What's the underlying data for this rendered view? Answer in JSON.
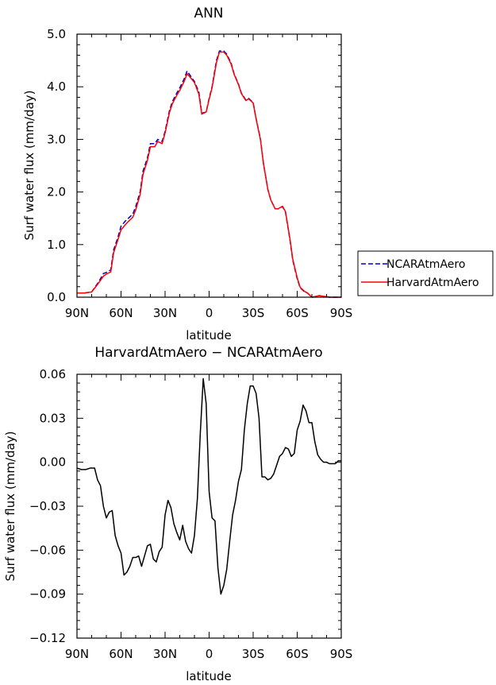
{
  "chart_data": [
    {
      "type": "line",
      "title": "ANN",
      "xlabel": "latitude",
      "ylabel": "Surf water flux (mm/day)",
      "xlim": [
        90,
        -90
      ],
      "ylim": [
        0,
        5
      ],
      "xticks": [
        90,
        60,
        30,
        0,
        -30,
        -60,
        -90
      ],
      "xtick_labels": [
        "90N",
        "60N",
        "30N",
        "0",
        "30S",
        "60S",
        "90S"
      ],
      "yticks": [
        0,
        1,
        2,
        3,
        4,
        5
      ],
      "ytick_labels": [
        "0.0",
        "1.0",
        "2.0",
        "3.0",
        "4.0",
        "5.0"
      ],
      "legend": "right",
      "series": [
        {
          "name": "NCARAtmAero",
          "color": "#0000cc",
          "style": "dashed",
          "x": [
            90,
            85,
            80,
            78,
            75,
            72,
            70,
            67,
            65,
            62,
            60,
            57,
            55,
            52,
            50,
            47,
            45,
            42,
            40,
            37,
            35,
            32,
            30,
            27,
            25,
            22,
            20,
            17,
            15,
            12,
            10,
            7,
            5,
            2,
            0,
            -2,
            -5,
            -7,
            -10,
            -12,
            -15,
            -17,
            -20,
            -22,
            -25,
            -27,
            -30,
            -32,
            -35,
            -37,
            -40,
            -42,
            -45,
            -47,
            -50,
            -52,
            -55,
            -57,
            -60,
            -62,
            -65,
            -67,
            -70,
            -72,
            -75,
            -77,
            -80,
            -82,
            -85,
            -87,
            -90
          ],
          "y": [
            0.08,
            0.08,
            0.1,
            0.18,
            0.3,
            0.45,
            0.47,
            0.52,
            0.9,
            1.15,
            1.35,
            1.45,
            1.5,
            1.58,
            1.72,
            2.0,
            2.4,
            2.65,
            2.92,
            2.92,
            3.0,
            2.96,
            3.15,
            3.55,
            3.72,
            3.88,
            3.98,
            4.15,
            4.3,
            4.18,
            4.1,
            3.9,
            3.5,
            3.52,
            3.78,
            4.0,
            4.5,
            4.68,
            4.68,
            4.62,
            4.45,
            4.25,
            4.05,
            3.88,
            3.75,
            3.78,
            3.7,
            3.4,
            3.0,
            2.55,
            2.05,
            1.85,
            1.68,
            1.68,
            1.72,
            1.62,
            1.1,
            0.7,
            0.35,
            0.18,
            0.1,
            0.08,
            0.0,
            0.01,
            0.03,
            0.02,
            0.01,
            0.0,
            0.0,
            0.0,
            0.0
          ]
        },
        {
          "name": "HarvardAtmAero",
          "color": "#ff0000",
          "style": "solid",
          "x": [
            90,
            85,
            80,
            78,
            75,
            72,
            70,
            67,
            65,
            62,
            60,
            57,
            55,
            52,
            50,
            47,
            45,
            42,
            40,
            37,
            35,
            32,
            30,
            27,
            25,
            22,
            20,
            17,
            15,
            12,
            10,
            7,
            5,
            2,
            0,
            -2,
            -5,
            -7,
            -10,
            -12,
            -15,
            -17,
            -20,
            -22,
            -25,
            -27,
            -30,
            -32,
            -35,
            -37,
            -40,
            -42,
            -45,
            -47,
            -50,
            -52,
            -55,
            -57,
            -60,
            -62,
            -65,
            -67,
            -70,
            -72,
            -75,
            -77,
            -80,
            -82,
            -85,
            -87,
            -90
          ],
          "y": [
            0.08,
            0.08,
            0.1,
            0.17,
            0.28,
            0.4,
            0.44,
            0.48,
            0.85,
            1.1,
            1.28,
            1.38,
            1.44,
            1.52,
            1.66,
            1.95,
            2.34,
            2.6,
            2.86,
            2.86,
            2.96,
            2.92,
            3.12,
            3.51,
            3.68,
            3.84,
            3.93,
            4.1,
            4.25,
            4.15,
            4.08,
            3.86,
            3.48,
            3.52,
            3.76,
            3.98,
            4.46,
            4.66,
            4.66,
            4.6,
            4.43,
            4.24,
            4.04,
            3.87,
            3.74,
            3.77,
            3.69,
            3.39,
            2.99,
            2.54,
            2.05,
            1.85,
            1.68,
            1.68,
            1.73,
            1.63,
            1.12,
            0.72,
            0.37,
            0.19,
            0.11,
            0.08,
            0.0,
            0.01,
            0.03,
            0.02,
            0.01,
            0.0,
            0.0,
            0.0,
            0.0
          ]
        }
      ]
    },
    {
      "type": "line",
      "title": "HarvardAtmAero − NCARAtmAero",
      "xlabel": "latitude",
      "ylabel": "Surf water flux (mm/day)",
      "xlim": [
        90,
        -90
      ],
      "ylim": [
        -0.12,
        0.06
      ],
      "xticks": [
        90,
        60,
        30,
        0,
        -30,
        -60,
        -90
      ],
      "xtick_labels": [
        "90N",
        "60N",
        "30N",
        "0",
        "30S",
        "60S",
        "90S"
      ],
      "yticks": [
        -0.12,
        -0.09,
        -0.06,
        -0.03,
        0.0,
        0.03,
        0.06
      ],
      "ytick_labels": [
        "−0.12",
        "−0.09",
        "−0.06",
        "−0.03",
        "0.00",
        "0.03",
        "0.06"
      ],
      "series": [
        {
          "color": "#000000",
          "style": "solid",
          "x": [
            90,
            87,
            84,
            81,
            78,
            76,
            74,
            72,
            70,
            68,
            66,
            64,
            62,
            60,
            58,
            56,
            54,
            52,
            50,
            48,
            46,
            44,
            42,
            40,
            38,
            36,
            34,
            32,
            30,
            28,
            26,
            24,
            22,
            20,
            18,
            16,
            14,
            12,
            10,
            8,
            6,
            4,
            2,
            0,
            -2,
            -4,
            -6,
            -8,
            -10,
            -12,
            -14,
            -16,
            -18,
            -20,
            -22,
            -24,
            -26,
            -28,
            -30,
            -32,
            -34,
            -36,
            -38,
            -40,
            -42,
            -44,
            -46,
            -48,
            -50,
            -52,
            -54,
            -56,
            -58,
            -60,
            -62,
            -64,
            -66,
            -68,
            -70,
            -72,
            -74,
            -76,
            -78,
            -80,
            -82,
            -84,
            -86,
            -88,
            -90
          ],
          "y": [
            -0.004,
            -0.005,
            -0.005,
            -0.004,
            -0.004,
            -0.012,
            -0.016,
            -0.03,
            -0.038,
            -0.034,
            -0.033,
            -0.05,
            -0.057,
            -0.062,
            -0.077,
            -0.075,
            -0.071,
            -0.065,
            -0.065,
            -0.064,
            -0.071,
            -0.064,
            -0.057,
            -0.056,
            -0.066,
            -0.068,
            -0.061,
            -0.058,
            -0.036,
            -0.026,
            -0.031,
            -0.042,
            -0.048,
            -0.053,
            -0.043,
            -0.054,
            -0.059,
            -0.062,
            -0.05,
            -0.025,
            0.02,
            0.057,
            0.04,
            -0.02,
            -0.038,
            -0.04,
            -0.072,
            -0.09,
            -0.084,
            -0.073,
            -0.054,
            -0.036,
            -0.026,
            -0.013,
            -0.005,
            0.022,
            0.04,
            0.052,
            0.052,
            0.047,
            0.03,
            -0.01,
            -0.01,
            -0.012,
            -0.011,
            -0.008,
            -0.002,
            0.004,
            0.006,
            0.01,
            0.009,
            0.004,
            0.006,
            0.022,
            0.028,
            0.039,
            0.035,
            0.027,
            0.027,
            0.014,
            0.005,
            0.002,
            0.0,
            0.0,
            -0.001,
            -0.001,
            -0.001,
            0.001,
            0.001
          ]
        }
      ]
    }
  ]
}
